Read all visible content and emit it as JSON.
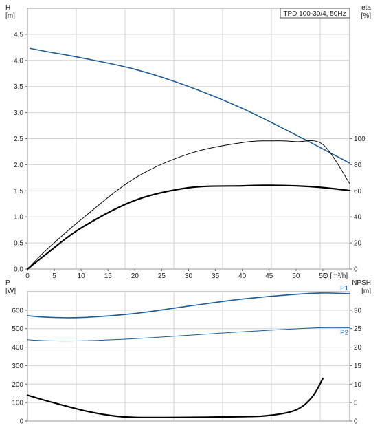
{
  "chart_data": [
    {
      "type": "line",
      "legend_text": "TPD 100-30/4, 50Hz",
      "x_axis": {
        "label": "Q [m³/h]",
        "range": [
          0,
          60
        ],
        "ticks": [
          0,
          5,
          10,
          15,
          20,
          25,
          30,
          35,
          40,
          45,
          50,
          55
        ]
      },
      "y_left": {
        "label_line1": "H",
        "label_line2": "[m]",
        "range": [
          0,
          5.0
        ],
        "ticks": [
          "0.0",
          "0.5",
          "1.0",
          "1.5",
          "2.0",
          "2.5",
          "3.0",
          "3.5",
          "4.0",
          "4.5"
        ]
      },
      "y_right": {
        "label_line1": "eta",
        "label_line2": "[%]",
        "range": [
          0,
          200
        ],
        "ticks": [
          "0",
          "20",
          "40",
          "60",
          "80",
          "100"
        ]
      },
      "grid": true,
      "series": [
        {
          "axis": "left",
          "color": "#1d5a96",
          "width": 1.6,
          "x": [
            0.5,
            3.5,
            10,
            20,
            30,
            40,
            50,
            60
          ],
          "y": [
            4.23,
            4.17,
            4.05,
            3.83,
            3.5,
            3.08,
            2.57,
            2.03
          ]
        },
        {
          "axis": "right",
          "color": "#000000",
          "width": 1.0,
          "x": [
            0,
            3.5,
            10,
            20,
            30,
            40,
            46,
            50,
            55,
            60
          ],
          "y": [
            0,
            14.5,
            38,
            69.7,
            88.3,
            97,
            98.3,
            97.7,
            95.5,
            65.5
          ]
        },
        {
          "axis": "right",
          "color": "#000000",
          "width": 2.2,
          "x": [
            0,
            3.5,
            10,
            20,
            30,
            40,
            45,
            50,
            55,
            60
          ],
          "y": [
            0,
            11.5,
            31.5,
            52.6,
            62.3,
            63.8,
            64.2,
            63.8,
            62.5,
            60.2
          ]
        }
      ]
    },
    {
      "type": "line",
      "x_axis": {
        "range": [
          0,
          60
        ]
      },
      "y_left": {
        "label_line1": "P",
        "label_line2": "[W]",
        "range": [
          0,
          700
        ],
        "ticks": [
          "0",
          "100",
          "200",
          "300",
          "400",
          "500",
          "600"
        ]
      },
      "y_right": {
        "label_line1": "NPSH",
        "label_line2": "[m]",
        "range": [
          0,
          35
        ],
        "ticks": [
          "0",
          "5",
          "10",
          "15",
          "20",
          "25",
          "30"
        ]
      },
      "grid": true,
      "series": [
        {
          "name": "P1",
          "axis": "left",
          "color": "#1d5a96",
          "width": 1.6,
          "x": [
            0,
            3.5,
            10,
            20,
            30,
            40,
            50,
            55,
            60
          ],
          "y": [
            570,
            562,
            560,
            582,
            622,
            660,
            686,
            693,
            689
          ]
        },
        {
          "name": "P2",
          "axis": "left",
          "color": "#1d5a96",
          "width": 1.0,
          "x": [
            0,
            3.5,
            10,
            20,
            30,
            40,
            50,
            55,
            60
          ],
          "y": [
            440,
            435,
            434,
            446,
            464,
            483,
            499,
            505,
            505
          ]
        },
        {
          "axis": "right",
          "color": "#000000",
          "width": 2.2,
          "x": [
            0,
            3.5,
            10,
            15,
            20,
            30,
            40,
            45,
            50,
            53,
            55
          ],
          "y": [
            7.0,
            5.5,
            3.0,
            1.6,
            1.0,
            1.0,
            1.2,
            1.5,
            3.0,
            6.5,
            11.5
          ]
        }
      ]
    }
  ]
}
